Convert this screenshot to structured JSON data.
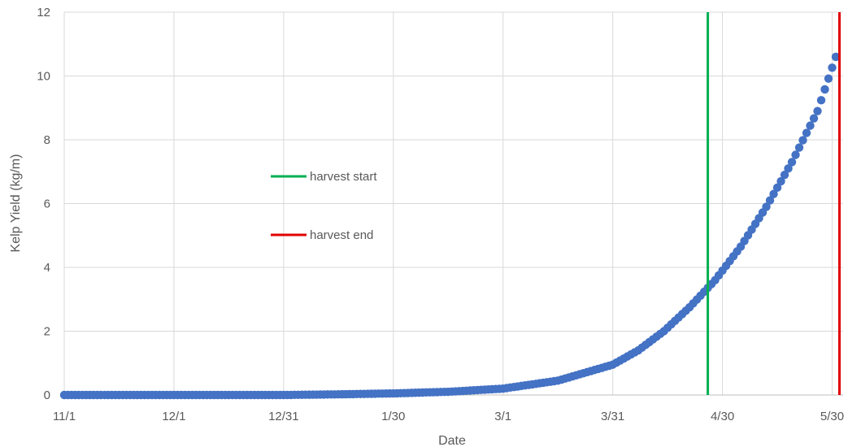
{
  "chart_data": {
    "type": "scatter",
    "title": "",
    "xlabel": "Date",
    "ylabel": "Kelp Yield (kg/m)",
    "ylim": [
      0,
      12
    ],
    "yticks": [
      0,
      2,
      4,
      6,
      8,
      10,
      12
    ],
    "xlim": [
      "11/1",
      "6/2"
    ],
    "xticks": [
      "11/1",
      "12/1",
      "12/31",
      "1/30",
      "3/1",
      "3/31",
      "4/30",
      "5/30"
    ],
    "grid": true,
    "legend_placement": "center-left",
    "series": [
      {
        "name": "",
        "color": "#4472C4",
        "marker": "circle",
        "x": [
          "11/1",
          "11/15",
          "12/1",
          "12/15",
          "12/31",
          "1/15",
          "1/30",
          "2/14",
          "3/1",
          "3/16",
          "3/31",
          "4/7",
          "4/14",
          "4/21",
          "4/28",
          "5/5",
          "5/12",
          "5/19",
          "5/26",
          "5/31"
        ],
        "y": [
          0.0,
          0.0,
          0.0,
          0.0,
          0.0,
          0.02,
          0.05,
          0.1,
          0.2,
          0.45,
          0.95,
          1.4,
          2.0,
          2.75,
          3.6,
          4.65,
          5.9,
          7.3,
          8.9,
          10.6
        ]
      }
    ],
    "reference_lines": [
      {
        "label": "harvest start",
        "x": "4/26",
        "color": "#00B050"
      },
      {
        "label": "harvest end",
        "x": "6/1",
        "color": "#E00000"
      }
    ]
  }
}
